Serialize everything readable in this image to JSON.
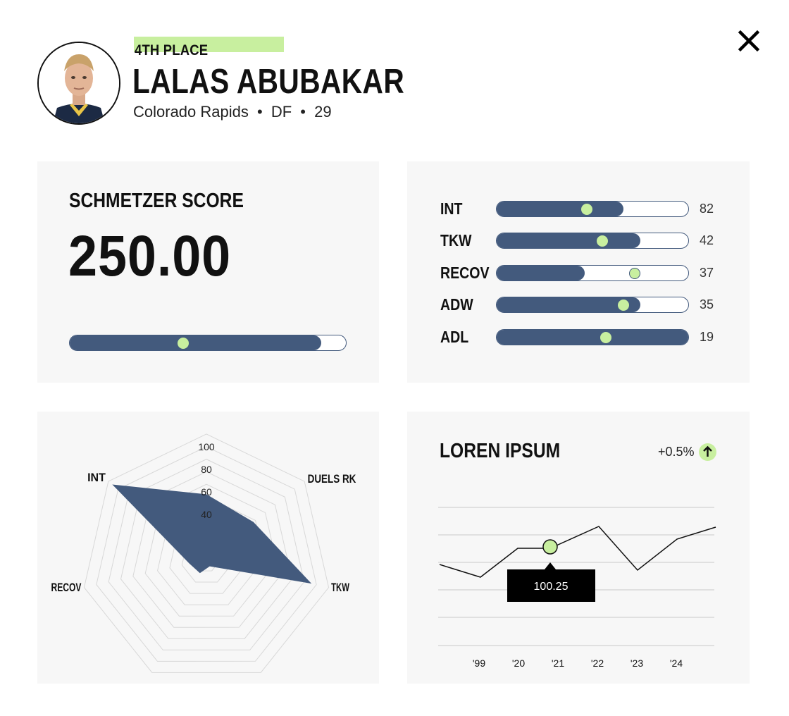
{
  "header": {
    "place": "4TH PLACE",
    "player_name": "LALAS ABUBAKAR",
    "team": "Colorado Rapids",
    "position": "DF",
    "age": "29",
    "separator": "•"
  },
  "score_card": {
    "title": "SCHMETZER SCORE",
    "value": "250.00",
    "bar_fill": 0.91,
    "bar_marker": 0.41
  },
  "stats": [
    {
      "label": "INT",
      "value": "82",
      "fill": 0.66,
      "marker": 0.47,
      "outlined": false
    },
    {
      "label": "TKW",
      "value": "42",
      "fill": 0.75,
      "marker": 0.55,
      "outlined": false
    },
    {
      "label": "RECOV",
      "value": "37",
      "fill": 0.46,
      "marker": 0.72,
      "outlined": true
    },
    {
      "label": "ADW",
      "value": "35",
      "fill": 0.75,
      "marker": 0.66,
      "outlined": false
    },
    {
      "label": "ADL",
      "value": "19",
      "fill": 1.0,
      "marker": 0.57,
      "outlined": false
    }
  ],
  "radar": {
    "axes": [
      "INT",
      "DUELS RK",
      "TKW",
      "",
      "",
      "RECOV",
      ""
    ],
    "ticks": [
      "40",
      "60",
      "80",
      "100"
    ],
    "values": [
      96,
      52,
      48,
      86,
      6,
      12,
      14
    ]
  },
  "trend": {
    "title": "LOREN IPSUM",
    "change": "+0.5%",
    "tooltip": "100.25",
    "x_labels": [
      "'99",
      "'20",
      "'21",
      "'22",
      "'23",
      "'24"
    ],
    "colors": {
      "line": "#111111",
      "accent": "#c8ef9f",
      "bar": "#435a7d"
    }
  }
}
